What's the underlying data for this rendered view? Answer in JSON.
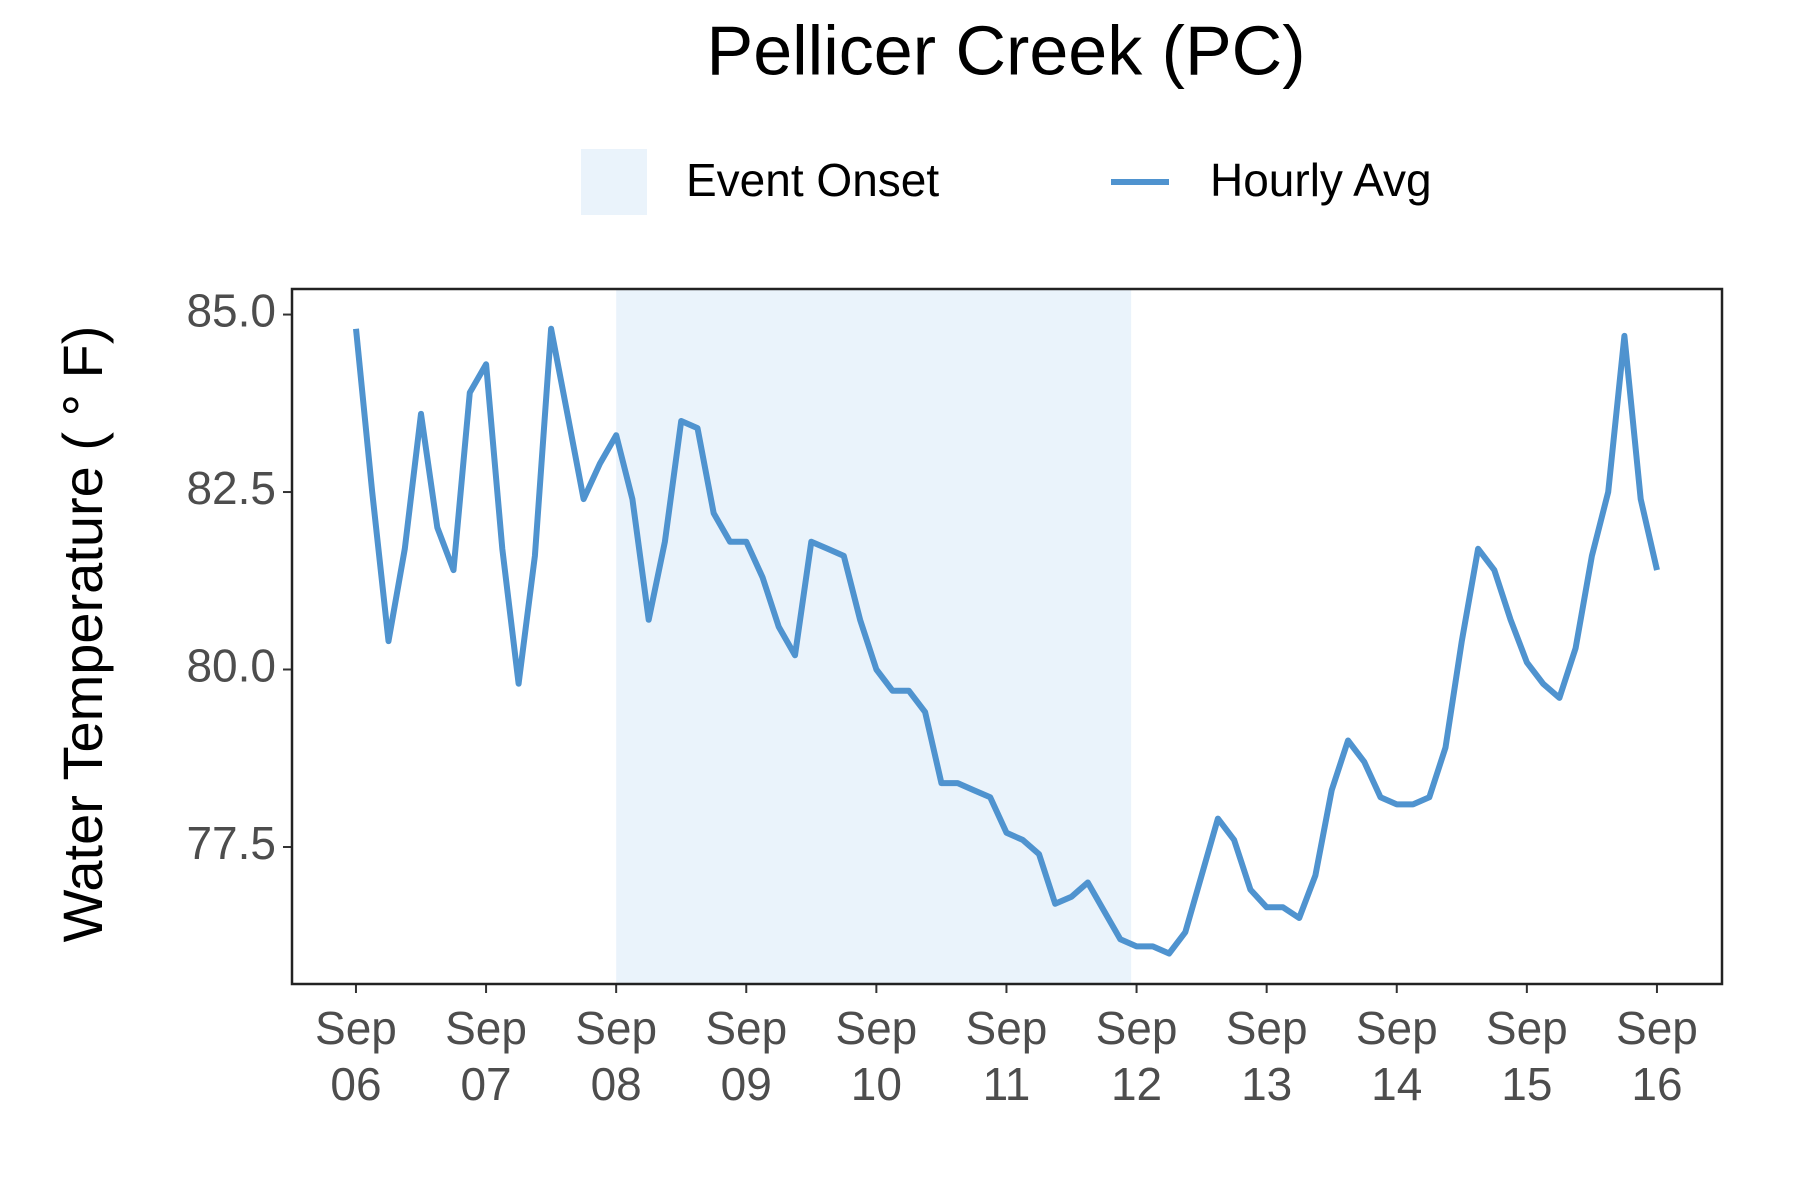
{
  "chart_data": {
    "type": "line",
    "title": "Pellicer Creek (PC)",
    "y_label": "Water Temperature ( ° F)",
    "x": [
      "Sep 06 00:00",
      "Sep 06 03:00",
      "Sep 06 06:00",
      "Sep 06 09:00",
      "Sep 06 12:00",
      "Sep 06 15:00",
      "Sep 06 18:00",
      "Sep 06 21:00",
      "Sep 07 00:00",
      "Sep 07 03:00",
      "Sep 07 06:00",
      "Sep 07 09:00",
      "Sep 07 12:00",
      "Sep 07 15:00",
      "Sep 07 18:00",
      "Sep 07 21:00",
      "Sep 08 00:00",
      "Sep 08 03:00",
      "Sep 08 06:00",
      "Sep 08 09:00",
      "Sep 08 12:00",
      "Sep 08 15:00",
      "Sep 08 18:00",
      "Sep 08 21:00",
      "Sep 09 00:00",
      "Sep 09 03:00",
      "Sep 09 06:00",
      "Sep 09 09:00",
      "Sep 09 12:00",
      "Sep 09 15:00",
      "Sep 09 18:00",
      "Sep 09 21:00",
      "Sep 10 00:00",
      "Sep 10 03:00",
      "Sep 10 06:00",
      "Sep 10 09:00",
      "Sep 10 12:00",
      "Sep 10 15:00",
      "Sep 10 18:00",
      "Sep 10 21:00",
      "Sep 11 00:00",
      "Sep 11 03:00",
      "Sep 11 06:00",
      "Sep 11 09:00",
      "Sep 11 12:00",
      "Sep 11 15:00",
      "Sep 11 18:00",
      "Sep 11 21:00",
      "Sep 12 00:00",
      "Sep 12 03:00",
      "Sep 12 06:00",
      "Sep 12 09:00",
      "Sep 12 12:00",
      "Sep 12 15:00",
      "Sep 12 18:00",
      "Sep 12 21:00",
      "Sep 13 00:00",
      "Sep 13 03:00",
      "Sep 13 06:00",
      "Sep 13 09:00",
      "Sep 13 12:00",
      "Sep 13 15:00",
      "Sep 13 18:00",
      "Sep 13 21:00",
      "Sep 14 00:00",
      "Sep 14 03:00",
      "Sep 14 06:00",
      "Sep 14 09:00",
      "Sep 14 12:00",
      "Sep 14 15:00",
      "Sep 14 18:00",
      "Sep 14 21:00",
      "Sep 15 00:00",
      "Sep 15 03:00",
      "Sep 15 06:00",
      "Sep 15 09:00",
      "Sep 15 12:00",
      "Sep 15 15:00",
      "Sep 15 18:00",
      "Sep 15 21:00",
      "Sep 16 00:00"
    ],
    "series": [
      {
        "name": "Hourly Avg",
        "color": "#4f93cf",
        "values": [
          84.8,
          82.5,
          80.4,
          81.7,
          83.6,
          82.0,
          81.4,
          83.9,
          84.3,
          81.7,
          79.8,
          81.6,
          84.8,
          83.6,
          82.4,
          82.9,
          83.3,
          82.4,
          80.7,
          81.8,
          83.5,
          83.4,
          82.2,
          81.8,
          81.8,
          81.3,
          80.6,
          80.2,
          81.8,
          81.7,
          81.6,
          80.7,
          80.0,
          79.7,
          79.7,
          79.4,
          78.4,
          78.4,
          78.3,
          78.2,
          77.7,
          77.6,
          77.4,
          76.7,
          76.8,
          77.0,
          76.6,
          76.2,
          76.1,
          76.1,
          76.0,
          76.3,
          77.1,
          77.9,
          77.6,
          76.9,
          76.65,
          76.65,
          76.5,
          77.1,
          78.3,
          79.0,
          78.7,
          78.2,
          78.1,
          78.1,
          78.2,
          78.9,
          80.4,
          81.7,
          81.4,
          80.7,
          80.1,
          79.8,
          79.6,
          80.3,
          81.6,
          82.5,
          84.7,
          82.4,
          81.4
        ]
      }
    ],
    "shaded": {
      "name": "Event Onset",
      "color": "#eaf3fb",
      "x": [
        "Sep 08 00:00",
        "Sep 11 23:00"
      ]
    },
    "xlim": [
      "Sep 05 12:12",
      "Sep 16 12:00"
    ],
    "xticks": [
      {
        "value": "Sep 06 00:00",
        "label": "Sep 06"
      },
      {
        "value": "Sep 07 00:00",
        "label": "Sep 07"
      },
      {
        "value": "Sep 08 00:00",
        "label": "Sep 08"
      },
      {
        "value": "Sep 09 00:00",
        "label": "Sep 09"
      },
      {
        "value": "Sep 10 00:00",
        "label": "Sep 10"
      },
      {
        "value": "Sep 11 00:00",
        "label": "Sep 11"
      },
      {
        "value": "Sep 12 00:00",
        "label": "Sep 12"
      },
      {
        "value": "Sep 13 00:00",
        "label": "Sep 13"
      },
      {
        "value": "Sep 14 00:00",
        "label": "Sep 14"
      },
      {
        "value": "Sep 15 00:00",
        "label": "Sep 15"
      },
      {
        "value": "Sep 16 00:00",
        "label": "Sep 16"
      }
    ],
    "ylim": [
      75.57,
      85.36
    ],
    "yticks": [
      {
        "value": 77.5,
        "label": "77.5"
      },
      {
        "value": 80,
        "label": "80.0"
      },
      {
        "value": 82.5,
        "label": "82.5"
      },
      {
        "value": 85,
        "label": "85.0"
      }
    ],
    "legend": "top"
  }
}
